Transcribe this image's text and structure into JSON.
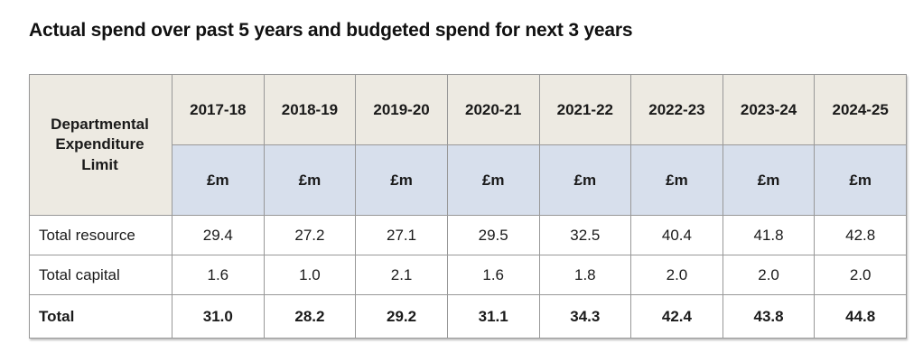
{
  "title": "Actual spend over past 5 years and budgeted spend for next 3 years",
  "table": {
    "corner_header": "Departmental Expenditure Limit",
    "unit_label": "£m",
    "years": [
      "2017-18",
      "2018-19",
      "2019-20",
      "2020-21",
      "2021-22",
      "2022-23",
      "2023-24",
      "2024-25"
    ],
    "rows": [
      {
        "label": "Total resource",
        "values": [
          "29.4",
          "27.2",
          "27.1",
          "29.5",
          "32.5",
          "40.4",
          "41.8",
          "42.8"
        ]
      },
      {
        "label": "Total capital",
        "values": [
          "1.6",
          "1.0",
          "2.1",
          "1.6",
          "1.8",
          "2.0",
          "2.0",
          "2.0"
        ]
      },
      {
        "label": "Total",
        "values": [
          "31.0",
          "28.2",
          "29.2",
          "31.1",
          "34.3",
          "42.4",
          "43.8",
          "44.8"
        ]
      }
    ],
    "colors": {
      "corner_bg": "#1e4272",
      "year_row_bg": "#edeae2",
      "unit_row_bg": "#d7dfec",
      "border": "#989898"
    }
  }
}
